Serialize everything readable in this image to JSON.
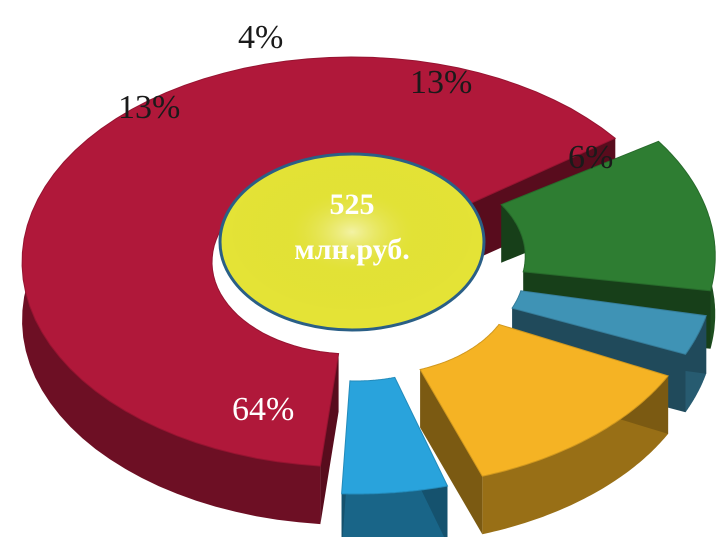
{
  "chart_data": {
    "type": "pie",
    "style": "3d-exploded-donut",
    "center_label": {
      "value": "525",
      "unit": "млн.руб."
    },
    "slices": [
      {
        "label": "64%",
        "value": 64,
        "color": "#b0183a"
      },
      {
        "label": "13%",
        "value": 13,
        "color": "#2e7d32"
      },
      {
        "label": "4%",
        "value": 4,
        "color": "#3f93b5"
      },
      {
        "label": "13%",
        "value": 13,
        "color": "#f5b324"
      },
      {
        "label": "6%",
        "value": 6,
        "color": "#29a3dc"
      }
    ],
    "center_color": "#e4e336",
    "legend": "none"
  }
}
